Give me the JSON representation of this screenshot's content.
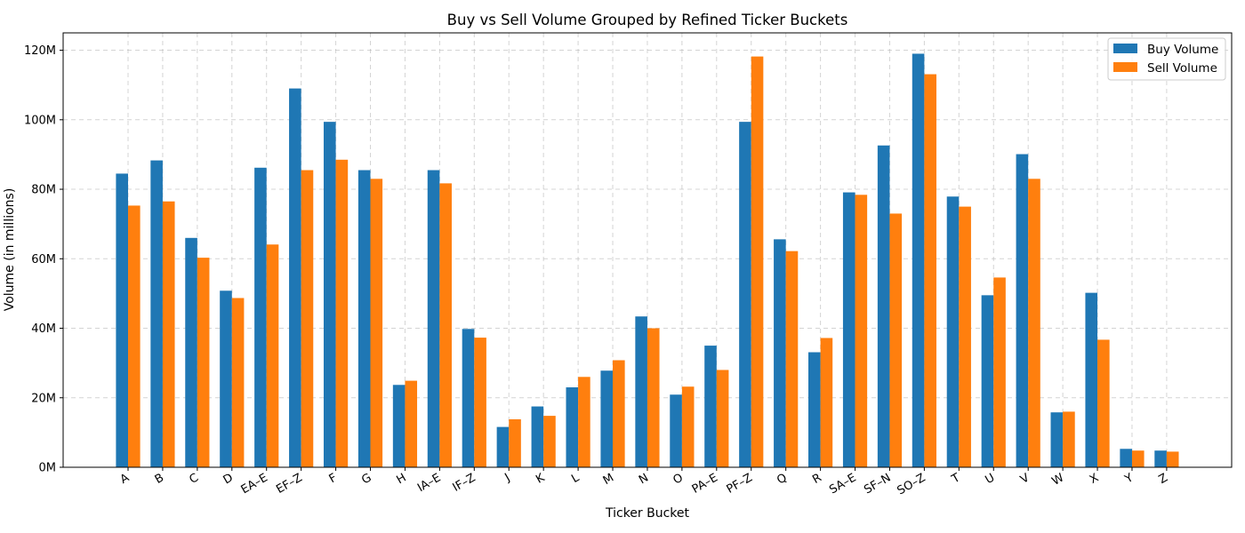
{
  "chart_data": {
    "type": "bar",
    "title": "Buy vs Sell Volume Grouped by Refined Ticker Buckets",
    "xlabel": "Ticker Bucket",
    "ylabel": "Volume (in millions)",
    "ylim": [
      0,
      125
    ],
    "yticks": [
      0,
      20,
      40,
      60,
      80,
      100,
      120
    ],
    "ytick_labels": [
      "0M",
      "20M",
      "40M",
      "60M",
      "80M",
      "100M",
      "120M"
    ],
    "grid": true,
    "legend_position": "top-right",
    "categories": [
      "A",
      "B",
      "C",
      "D",
      "EA–E",
      "EF–Z",
      "F",
      "G",
      "H",
      "IA–E",
      "IF–Z",
      "J",
      "K",
      "L",
      "M",
      "N",
      "O",
      "PA–E",
      "PF–Z",
      "Q",
      "R",
      "SA–E",
      "SF–N",
      "SO–Z",
      "T",
      "U",
      "V",
      "W",
      "X",
      "Y",
      "Z"
    ],
    "series": [
      {
        "name": "Buy Volume",
        "color": "#1f77b4",
        "values": [
          84.5,
          88.3,
          66.0,
          50.8,
          86.2,
          109.0,
          99.4,
          85.5,
          23.7,
          85.5,
          39.8,
          11.6,
          17.5,
          23.0,
          27.8,
          43.4,
          20.9,
          35.0,
          99.4,
          65.6,
          33.1,
          79.1,
          92.6,
          119.0,
          77.9,
          49.5,
          90.1,
          15.8,
          50.2,
          5.3,
          4.8
        ]
      },
      {
        "name": "Sell Volume",
        "color": "#ff7f0e",
        "values": [
          75.3,
          76.5,
          60.3,
          48.7,
          64.1,
          85.5,
          88.5,
          83.0,
          24.9,
          81.7,
          37.3,
          13.8,
          14.8,
          26.0,
          30.8,
          40.0,
          23.2,
          28.0,
          118.2,
          62.2,
          37.2,
          78.4,
          73.0,
          113.1,
          75.0,
          54.6,
          83.0,
          16.0,
          36.7,
          4.8,
          4.5
        ]
      }
    ]
  }
}
